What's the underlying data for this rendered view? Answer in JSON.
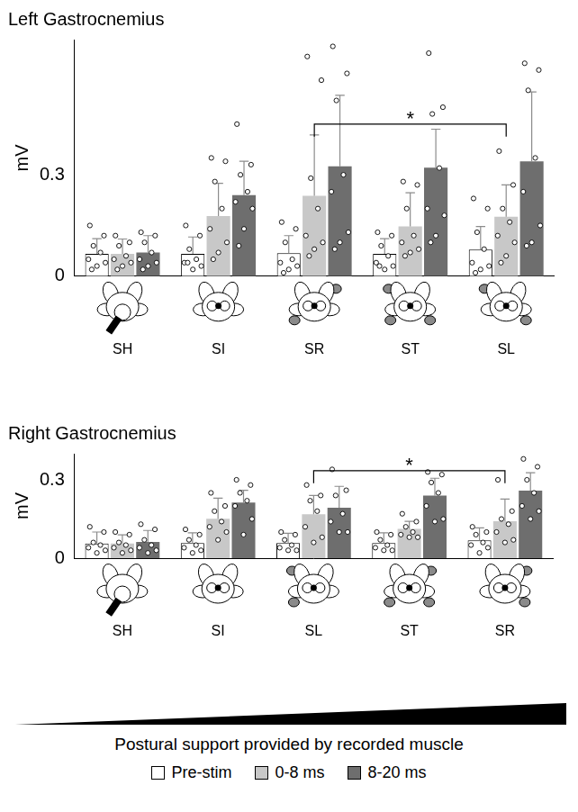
{
  "chart_data": [
    {
      "type": "bar",
      "title": "Left Gastrocnemius",
      "y_label": "mV",
      "categories": [
        "SH",
        "SI",
        "SR",
        "ST",
        "SL"
      ],
      "ylim": [
        0,
        0.7
      ],
      "yticks": [
        0,
        0.3
      ],
      "grid": false,
      "series": [
        {
          "name": "Pre-stim",
          "color": "#ffffff",
          "values": [
            0.066,
            0.066,
            0.068,
            0.066,
            0.079
          ],
          "errors": [
            0.045,
            0.05,
            0.052,
            0.045,
            0.068
          ],
          "points": [
            [
              0.15,
              0.12,
              0.09,
              0.07,
              0.05,
              0.04,
              0.03,
              0.02
            ],
            [
              0.15,
              0.12,
              0.08,
              0.05,
              0.04,
              0.03,
              0.02,
              0.04
            ],
            [
              0.16,
              0.14,
              0.1,
              0.05,
              0.04,
              0.03,
              0.02,
              0.01
            ],
            [
              0.13,
              0.12,
              0.09,
              0.06,
              0.04,
              0.03,
              0.02,
              0.03
            ],
            [
              0.23,
              0.2,
              0.13,
              0.08,
              0.04,
              0.03,
              0.02,
              0.01
            ]
          ]
        },
        {
          "name": "0-8 ms",
          "color": "#c8c8c8",
          "values": [
            0.066,
            0.178,
            0.238,
            0.147,
            0.176
          ],
          "errors": [
            0.044,
            0.097,
            0.18,
            0.1,
            0.094
          ],
          "points": [
            [
              0.12,
              0.1,
              0.09,
              0.06,
              0.05,
              0.04,
              0.03,
              0.02
            ],
            [
              0.35,
              0.34,
              0.28,
              0.2,
              0.14,
              0.1,
              0.07,
              0.05
            ],
            [
              0.65,
              0.58,
              0.29,
              0.2,
              0.12,
              0.1,
              0.08,
              0.06
            ],
            [
              0.28,
              0.27,
              0.2,
              0.12,
              0.1,
              0.08,
              0.07,
              0.06
            ],
            [
              0.37,
              0.27,
              0.2,
              0.16,
              0.12,
              0.1,
              0.06,
              0.04
            ]
          ]
        },
        {
          "name": "8-20 ms",
          "color": "#6e6e6e",
          "values": [
            0.07,
            0.24,
            0.325,
            0.321,
            0.34
          ],
          "errors": [
            0.05,
            0.1,
            0.21,
            0.114,
            0.205
          ],
          "points": [
            [
              0.13,
              0.12,
              0.1,
              0.07,
              0.05,
              0.04,
              0.03,
              0.02
            ],
            [
              0.45,
              0.33,
              0.3,
              0.25,
              0.22,
              0.2,
              0.14,
              0.09
            ],
            [
              0.68,
              0.6,
              0.52,
              0.3,
              0.25,
              0.13,
              0.1,
              0.08
            ],
            [
              0.66,
              0.5,
              0.48,
              0.32,
              0.2,
              0.18,
              0.12,
              0.1
            ],
            [
              0.63,
              0.61,
              0.55,
              0.35,
              0.25,
              0.15,
              0.1,
              0.09
            ]
          ]
        }
      ],
      "annotations": [
        {
          "from": "SR",
          "to": "SL",
          "series": "0-8 ms",
          "y": 0.45,
          "label": "*"
        }
      ]
    },
    {
      "type": "bar",
      "title": "Right Gastrocnemius",
      "y_label": "mV",
      "categories": [
        "SH",
        "SI",
        "SL",
        "ST",
        "SR"
      ],
      "ylim": [
        0,
        0.4
      ],
      "yticks": [
        0,
        0.3
      ],
      "grid": false,
      "x_label": "Postural support provided by recorded muscle",
      "legend": "bottom",
      "series": [
        {
          "name": "Pre-stim",
          "color": "#ffffff",
          "values": [
            0.056,
            0.058,
            0.058,
            0.058,
            0.068
          ],
          "errors": [
            0.044,
            0.039,
            0.037,
            0.039,
            0.048
          ],
          "points": [
            [
              0.12,
              0.1,
              0.06,
              0.05,
              0.04,
              0.03,
              0.02
            ],
            [
              0.11,
              0.09,
              0.07,
              0.05,
              0.04,
              0.03,
              0.02
            ],
            [
              0.1,
              0.09,
              0.07,
              0.05,
              0.04,
              0.03,
              0.03
            ],
            [
              0.1,
              0.09,
              0.07,
              0.05,
              0.04,
              0.03,
              0.03
            ],
            [
              0.12,
              0.1,
              0.09,
              0.06,
              0.05,
              0.04,
              0.02
            ]
          ]
        },
        {
          "name": "0-8 ms",
          "color": "#c8c8c8",
          "values": [
            0.056,
            0.151,
            0.168,
            0.112,
            0.141
          ],
          "errors": [
            0.033,
            0.079,
            0.072,
            0.029,
            0.085
          ],
          "points": [
            [
              0.1,
              0.09,
              0.06,
              0.05,
              0.04,
              0.03,
              0.02
            ],
            [
              0.25,
              0.2,
              0.18,
              0.14,
              0.12,
              0.1,
              0.07
            ],
            [
              0.28,
              0.24,
              0.22,
              0.18,
              0.12,
              0.08,
              0.06
            ],
            [
              0.17,
              0.14,
              0.12,
              0.1,
              0.09,
              0.08,
              0.08
            ],
            [
              0.3,
              0.18,
              0.15,
              0.13,
              0.1,
              0.07,
              0.06
            ]
          ]
        },
        {
          "name": "8-20 ms",
          "color": "#6e6e6e",
          "values": [
            0.062,
            0.213,
            0.193,
            0.24,
            0.259
          ],
          "errors": [
            0.044,
            0.047,
            0.082,
            0.066,
            0.068
          ],
          "points": [
            [
              0.13,
              0.11,
              0.07,
              0.05,
              0.04,
              0.03,
              0.02
            ],
            [
              0.3,
              0.28,
              0.25,
              0.22,
              0.2,
              0.15,
              0.09
            ],
            [
              0.34,
              0.26,
              0.24,
              0.17,
              0.14,
              0.1,
              0.1
            ],
            [
              0.33,
              0.32,
              0.29,
              0.25,
              0.2,
              0.15,
              0.14
            ],
            [
              0.38,
              0.35,
              0.3,
              0.25,
              0.2,
              0.18,
              0.15
            ]
          ]
        }
      ],
      "annotations": [
        {
          "from": "SL",
          "to": "SR",
          "series": "0-8 ms",
          "y": 0.335,
          "label": "*"
        }
      ]
    }
  ]
}
